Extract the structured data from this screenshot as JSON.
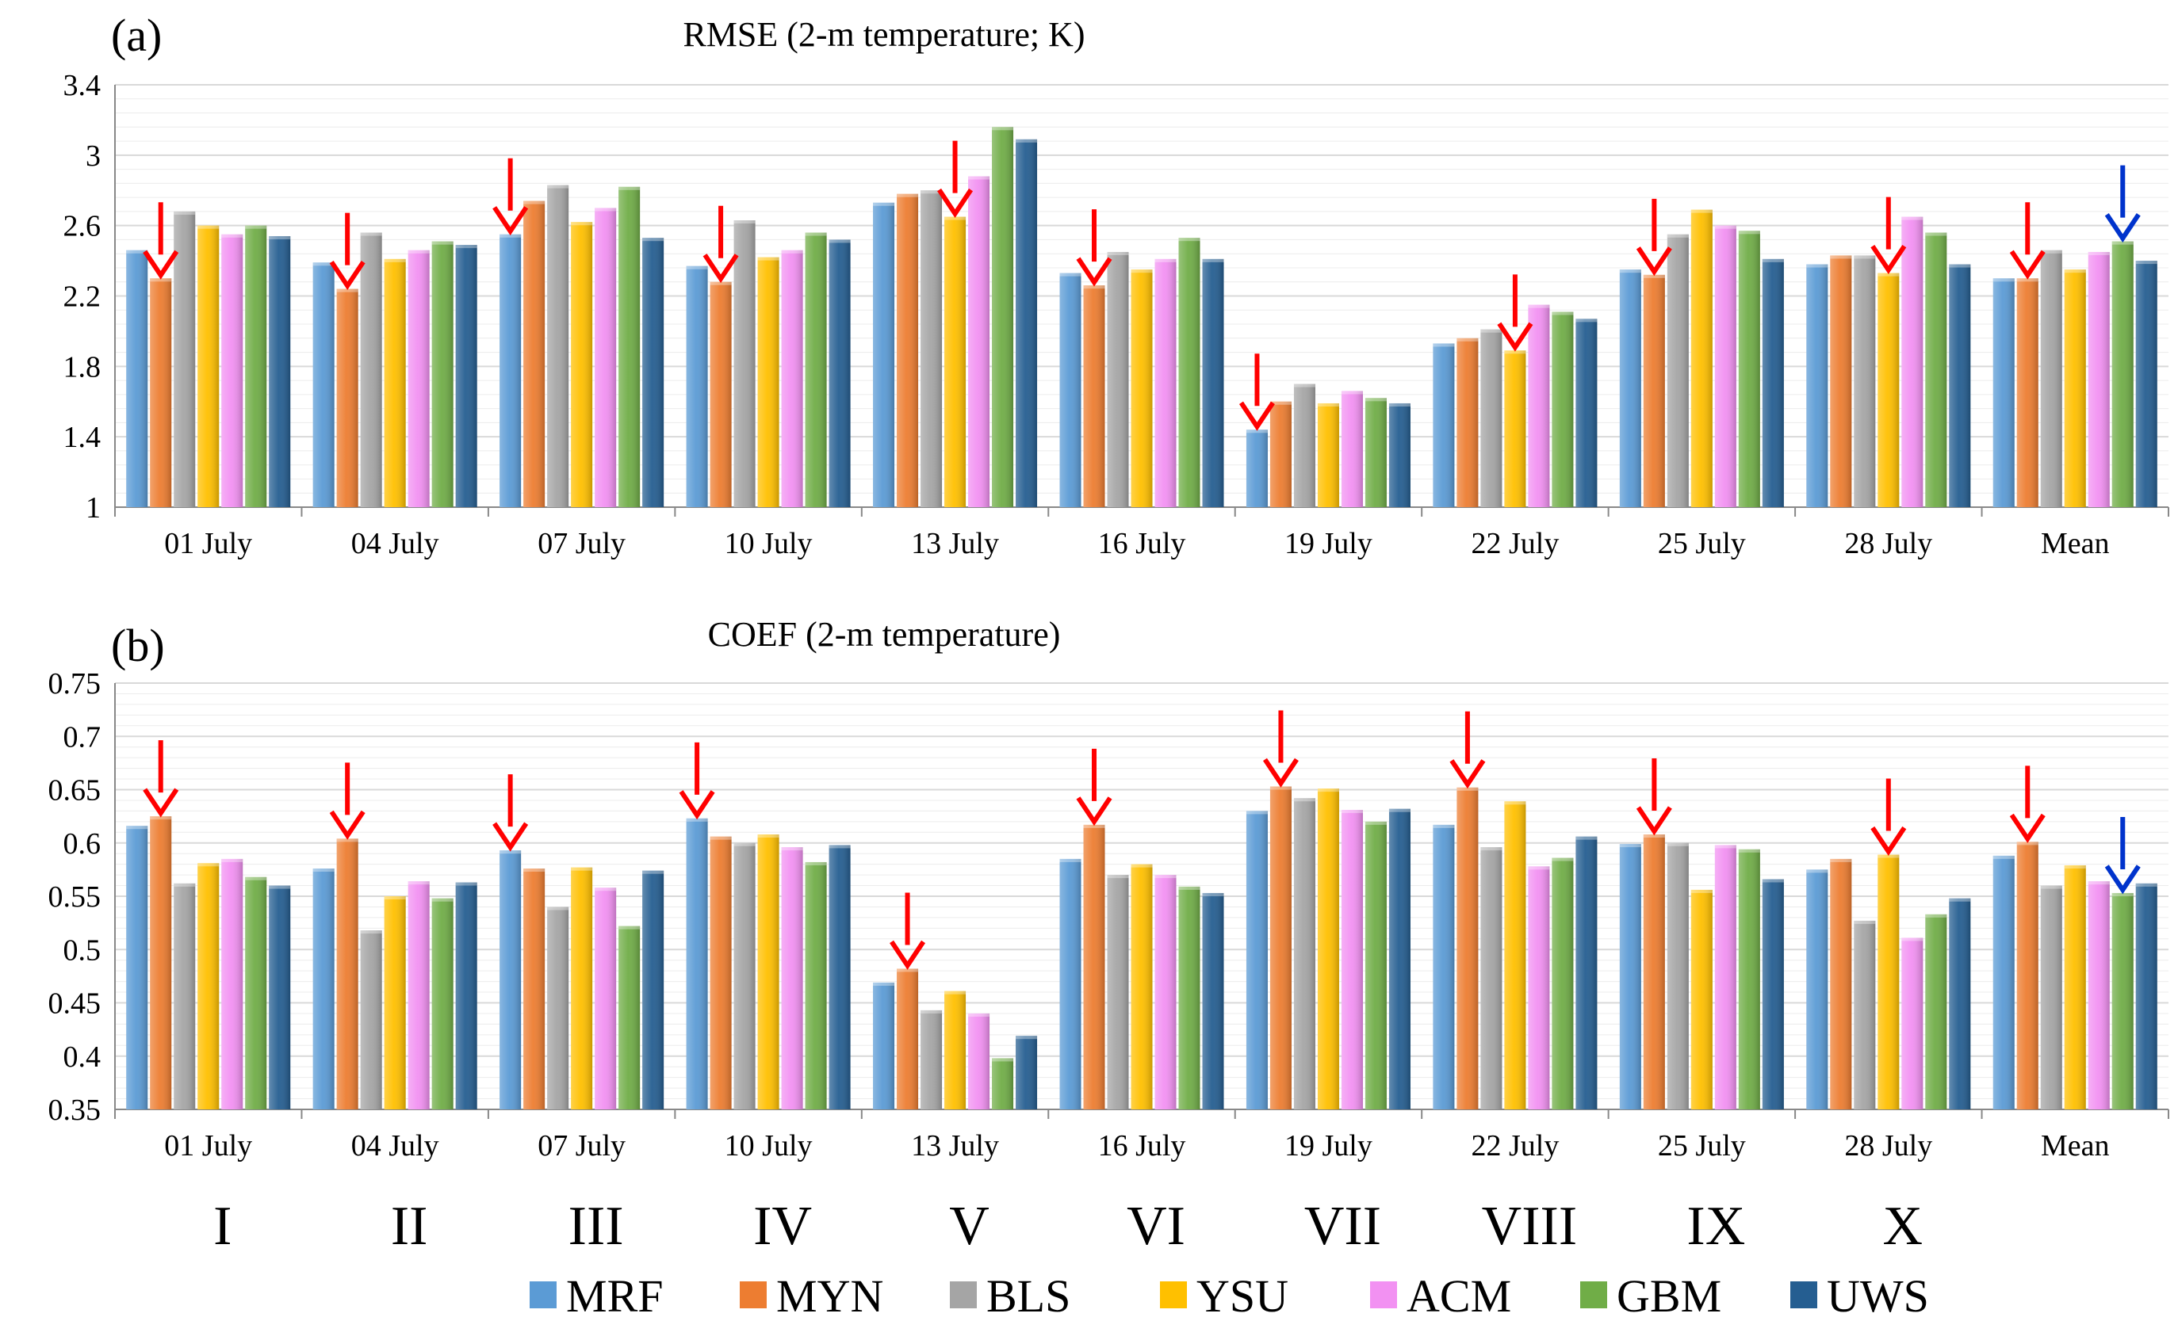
{
  "chart_data": [
    {
      "type": "bar",
      "panel": "(a)",
      "title": "RMSE (2-m temperature; K)",
      "xlabel": "",
      "ylabel": "",
      "ylim": [
        1,
        3.4
      ],
      "yticks": [
        "1",
        "1.4",
        "1.8",
        "2.2",
        "2.6",
        "3",
        "3.4"
      ],
      "grid": true,
      "categories": [
        "01 July",
        "04 July",
        "07 July",
        "10 July",
        "13 July",
        "16 July",
        "19 July",
        "22 July",
        "25 July",
        "28 July",
        "Mean"
      ],
      "series": [
        {
          "name": "MRF",
          "values": [
            2.46,
            2.39,
            2.55,
            2.37,
            2.73,
            2.33,
            1.44,
            1.93,
            2.35,
            2.38,
            2.3
          ]
        },
        {
          "name": "MYN",
          "values": [
            2.3,
            2.24,
            2.74,
            2.28,
            2.78,
            2.26,
            1.6,
            1.96,
            2.32,
            2.43,
            2.3
          ]
        },
        {
          "name": "BLS",
          "values": [
            2.68,
            2.56,
            2.83,
            2.63,
            2.8,
            2.45,
            1.7,
            2.01,
            2.55,
            2.43,
            2.46
          ]
        },
        {
          "name": "YSU",
          "values": [
            2.6,
            2.41,
            2.62,
            2.42,
            2.65,
            2.35,
            1.59,
            1.89,
            2.69,
            2.33,
            2.35
          ]
        },
        {
          "name": "ACM",
          "values": [
            2.55,
            2.46,
            2.7,
            2.46,
            2.88,
            2.41,
            1.66,
            2.15,
            2.6,
            2.65,
            2.45
          ]
        },
        {
          "name": "GBM",
          "values": [
            2.6,
            2.51,
            2.82,
            2.56,
            3.16,
            2.53,
            1.62,
            2.11,
            2.57,
            2.56,
            2.51
          ]
        },
        {
          "name": "UWS",
          "values": [
            2.54,
            2.49,
            2.53,
            2.52,
            3.09,
            2.41,
            1.59,
            2.07,
            2.41,
            2.38,
            2.4
          ]
        }
      ],
      "red_arrows": [
        {
          "category": "01 July",
          "series": "MYN"
        },
        {
          "category": "04 July",
          "series": "MYN"
        },
        {
          "category": "07 July",
          "series": "MRF"
        },
        {
          "category": "10 July",
          "series": "MYN"
        },
        {
          "category": "13 July",
          "series": "YSU"
        },
        {
          "category": "16 July",
          "series": "MYN"
        },
        {
          "category": "19 July",
          "series": "MRF"
        },
        {
          "category": "22 July",
          "series": "YSU"
        },
        {
          "category": "25 July",
          "series": "MYN"
        },
        {
          "category": "28 July",
          "series": "YSU"
        },
        {
          "category": "Mean",
          "series": "MYN"
        }
      ],
      "blue_arrows": [
        {
          "category": "Mean",
          "series": "GBM"
        }
      ]
    },
    {
      "type": "bar",
      "panel": "(b)",
      "title": "COEF (2-m temperature)",
      "xlabel": "",
      "ylabel": "",
      "ylim": [
        0.35,
        0.75
      ],
      "yticks": [
        "0.35",
        "0.4",
        "0.45",
        "0.5",
        "0.55",
        "0.6",
        "0.65",
        "0.7",
        "0.75"
      ],
      "grid": true,
      "categories": [
        "01 July",
        "04 July",
        "07 July",
        "10 July",
        "13 July",
        "16 July",
        "19 July",
        "22 July",
        "25 July",
        "28 July",
        "Mean"
      ],
      "group_labels": [
        "I",
        "II",
        "III",
        "IV",
        "V",
        "VI",
        "VII",
        "VIII",
        "IX",
        "X"
      ],
      "series": [
        {
          "name": "MRF",
          "values": [
            0.616,
            0.576,
            0.593,
            0.623,
            0.469,
            0.585,
            0.63,
            0.617,
            0.599,
            0.575,
            0.588
          ]
        },
        {
          "name": "MYN",
          "values": [
            0.625,
            0.604,
            0.576,
            0.606,
            0.482,
            0.617,
            0.653,
            0.652,
            0.608,
            0.585,
            0.601
          ]
        },
        {
          "name": "BLS",
          "values": [
            0.562,
            0.518,
            0.54,
            0.6,
            0.443,
            0.57,
            0.642,
            0.596,
            0.6,
            0.527,
            0.56
          ]
        },
        {
          "name": "YSU",
          "values": [
            0.581,
            0.55,
            0.577,
            0.608,
            0.461,
            0.58,
            0.651,
            0.639,
            0.556,
            0.589,
            0.579
          ]
        },
        {
          "name": "ACM",
          "values": [
            0.585,
            0.564,
            0.558,
            0.596,
            0.44,
            0.57,
            0.631,
            0.578,
            0.598,
            0.511,
            0.564
          ]
        },
        {
          "name": "GBM",
          "values": [
            0.568,
            0.548,
            0.522,
            0.582,
            0.398,
            0.559,
            0.62,
            0.586,
            0.594,
            0.533,
            0.553
          ]
        },
        {
          "name": "UWS",
          "values": [
            0.56,
            0.563,
            0.574,
            0.598,
            0.419,
            0.553,
            0.632,
            0.606,
            0.566,
            0.548,
            0.562
          ]
        }
      ],
      "red_arrows": [
        {
          "category": "01 July",
          "series": "MYN"
        },
        {
          "category": "04 July",
          "series": "MYN"
        },
        {
          "category": "07 July",
          "series": "MRF"
        },
        {
          "category": "10 July",
          "series": "MRF"
        },
        {
          "category": "13 July",
          "series": "MYN"
        },
        {
          "category": "16 July",
          "series": "MYN"
        },
        {
          "category": "19 July",
          "series": "MYN"
        },
        {
          "category": "22 July",
          "series": "MYN"
        },
        {
          "category": "25 July",
          "series": "MYN"
        },
        {
          "category": "28 July",
          "series": "YSU"
        },
        {
          "category": "Mean",
          "series": "MYN"
        }
      ],
      "blue_arrows": [
        {
          "category": "Mean",
          "series": "GBM"
        }
      ]
    }
  ],
  "legend": [
    {
      "name": "MRF",
      "color": "#5b9bd5"
    },
    {
      "name": "MYN",
      "color": "#ed7d31"
    },
    {
      "name": "BLS",
      "color": "#a5a5a5"
    },
    {
      "name": "YSU",
      "color": "#ffc000"
    },
    {
      "name": "ACM",
      "color": "#f291f2"
    },
    {
      "name": "GBM",
      "color": "#70ad47"
    },
    {
      "name": "UWS",
      "color": "#255e91"
    }
  ],
  "colors": {
    "red_arrow": "#ff0000",
    "blue_arrow": "#0033cc",
    "grid": "#d9d9d9",
    "axis": "#888888"
  }
}
